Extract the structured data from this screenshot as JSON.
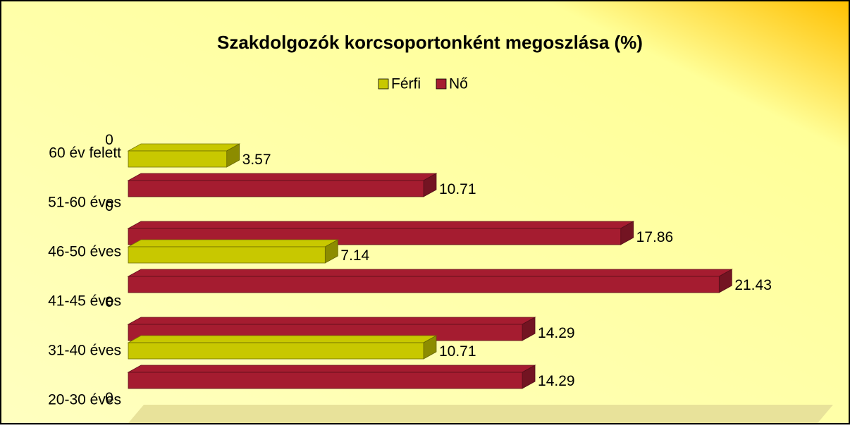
{
  "chart_data": {
    "type": "bar3d_horizontal",
    "title": "Szakdolgozók korcsoportonként megoszlása (%)",
    "categories": [
      "20-30 éves",
      "31-40 éves",
      "41-45 éves",
      "46-50 éves",
      "51-60 éves",
      "60 év felett"
    ],
    "series": [
      {
        "name": "Férfi",
        "color": "#c8c800",
        "values": [
          0,
          10.71,
          0,
          7.14,
          0,
          3.57
        ]
      },
      {
        "name": "Nő",
        "color": "#a51c30",
        "values": [
          14.29,
          14.29,
          21.43,
          17.86,
          10.71,
          0
        ]
      }
    ],
    "xlim": [
      0,
      25
    ],
    "legend": "top"
  }
}
